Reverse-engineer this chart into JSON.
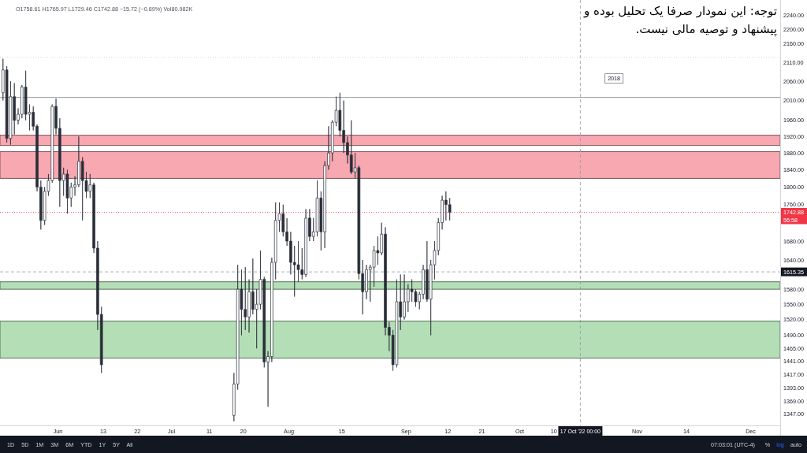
{
  "chart_data": {
    "type": "candlestick",
    "color": "#2a2e39",
    "x": [
      "2022-05-17T12:00",
      "2022-05-18T12:00",
      "2022-05-19T12:00",
      "2022-05-20T12:00",
      "2022-05-21T12:00",
      "2022-05-22T12:00",
      "2022-05-23T12:00",
      "2022-05-24T12:00",
      "2022-05-25T12:00",
      "2022-05-26T12:00",
      "2022-05-27T12:00",
      "2022-05-28T12:00",
      "2022-05-29T12:00",
      "2022-05-30T12:00",
      "2022-05-31T12:00",
      "2022-06-01T12:00",
      "2022-06-02T12:00",
      "2022-06-03T12:00",
      "2022-06-04T12:00",
      "2022-06-05T12:00",
      "2022-06-06T12:00",
      "2022-06-07T12:00",
      "2022-06-08T12:00",
      "2022-06-09T12:00",
      "2022-06-10T12:00",
      "2022-06-11T12:00",
      "2022-06-12T12:00",
      "2022-07-17T12:00",
      "2022-07-18T12:00",
      "2022-07-19T12:00",
      "2022-07-20T12:00",
      "2022-07-21T12:00",
      "2022-07-22T12:00",
      "2022-07-23T12:00",
      "2022-07-24T12:00",
      "2022-07-25T12:00",
      "2022-07-26T12:00",
      "2022-07-27T12:00",
      "2022-07-28T12:00",
      "2022-07-29T12:00",
      "2022-07-30T12:00",
      "2022-07-31T12:00",
      "2022-08-01T12:00",
      "2022-08-02T12:00",
      "2022-08-03T12:00",
      "2022-08-04T12:00",
      "2022-08-05T12:00",
      "2022-08-06T12:00",
      "2022-08-07T12:00",
      "2022-08-08T12:00",
      "2022-08-09T12:00",
      "2022-08-10T12:00",
      "2022-08-11T12:00",
      "2022-08-12T12:00",
      "2022-08-13T12:00",
      "2022-08-14T12:00",
      "2022-08-15T12:00",
      "2022-08-16T12:00",
      "2022-08-17T12:00",
      "2022-08-18T12:00",
      "2022-08-19T12:00",
      "2022-08-20T12:00",
      "2022-08-21T12:00",
      "2022-08-22T12:00",
      "2022-08-23T12:00",
      "2022-08-24T12:00",
      "2022-08-25T12:00",
      "2022-08-26T12:00",
      "2022-08-27T12:00",
      "2022-08-28T12:00",
      "2022-08-29T12:00",
      "2022-08-30T12:00",
      "2022-08-31T12:00",
      "2022-09-01T12:00",
      "2022-09-02T12:00",
      "2022-09-03T12:00",
      "2022-09-04T12:00",
      "2022-09-05T12:00",
      "2022-09-06T12:00",
      "2022-09-07T12:00",
      "2022-09-08T12:00",
      "2022-09-09T12:00",
      "2022-09-10T12:00",
      "2022-09-11T12:00",
      "2022-09-12T12:00"
    ],
    "ohlc": [
      [
        2030,
        2120,
        2010,
        2090
      ],
      [
        2090,
        2100,
        1905,
        1915
      ],
      [
        1915,
        2060,
        1900,
        2020
      ],
      [
        2020,
        2055,
        1925,
        1960
      ],
      [
        1960,
        1990,
        1950,
        1975
      ],
      [
        1975,
        2050,
        1965,
        2045
      ],
      [
        2045,
        2088,
        1960,
        1975
      ],
      [
        1975,
        2000,
        1935,
        1980
      ],
      [
        1980,
        1995,
        1935,
        1945
      ],
      [
        1945,
        1950,
        1790,
        1800
      ],
      [
        1800,
        1815,
        1705,
        1725
      ],
      [
        1725,
        1800,
        1715,
        1790
      ],
      [
        1790,
        1830,
        1780,
        1815
      ],
      [
        1815,
        2000,
        1810,
        1995
      ],
      [
        1995,
        2015,
        1925,
        1940
      ],
      [
        1940,
        1965,
        1755,
        1815
      ],
      [
        1815,
        1845,
        1780,
        1830
      ],
      [
        1830,
        1840,
        1740,
        1775
      ],
      [
        1775,
        1810,
        1755,
        1800
      ],
      [
        1800,
        1825,
        1780,
        1805
      ],
      [
        1805,
        1920,
        1800,
        1860
      ],
      [
        1860,
        1870,
        1725,
        1815
      ],
      [
        1815,
        1835,
        1775,
        1790
      ],
      [
        1790,
        1830,
        1775,
        1805
      ],
      [
        1805,
        1810,
        1655,
        1665
      ],
      [
        1665,
        1680,
        1500,
        1530
      ],
      [
        1530,
        1545,
        1420,
        1435
      ],
      [
        1345,
        1420,
        1335,
        1400
      ],
      [
        1400,
        1630,
        1390,
        1580
      ],
      [
        1580,
        1620,
        1490,
        1540
      ],
      [
        1540,
        1625,
        1500,
        1525
      ],
      [
        1525,
        1600,
        1495,
        1575
      ],
      [
        1575,
        1643,
        1530,
        1540
      ],
      [
        1540,
        1580,
        1465,
        1550
      ],
      [
        1550,
        1660,
        1540,
        1600
      ],
      [
        1600,
        1605,
        1430,
        1440
      ],
      [
        1440,
        1460,
        1360,
        1450
      ],
      [
        1450,
        1645,
        1440,
        1635
      ],
      [
        1635,
        1765,
        1600,
        1725
      ],
      [
        1725,
        1765,
        1700,
        1740
      ],
      [
        1740,
        1760,
        1690,
        1700
      ],
      [
        1700,
        1730,
        1670,
        1680
      ],
      [
        1680,
        1700,
        1610,
        1635
      ],
      [
        1635,
        1670,
        1565,
        1630
      ],
      [
        1630,
        1680,
        1595,
        1620
      ],
      [
        1620,
        1665,
        1600,
        1610
      ],
      [
        1610,
        1750,
        1605,
        1730
      ],
      [
        1730,
        1750,
        1680,
        1690
      ],
      [
        1690,
        1730,
        1680,
        1700
      ],
      [
        1700,
        1815,
        1690,
        1775
      ],
      [
        1775,
        1790,
        1660,
        1700
      ],
      [
        1700,
        1860,
        1665,
        1850
      ],
      [
        1850,
        1945,
        1840,
        1880
      ],
      [
        1880,
        1960,
        1860,
        1955
      ],
      [
        1955,
        2020,
        1945,
        1985
      ],
      [
        1985,
        2030,
        1920,
        1935
      ],
      [
        1935,
        2010,
        1880,
        1905
      ],
      [
        1905,
        1920,
        1855,
        1875
      ],
      [
        1875,
        1960,
        1830,
        1835
      ],
      [
        1835,
        1880,
        1820,
        1845
      ],
      [
        1845,
        1850,
        1600,
        1612
      ],
      [
        1612,
        1640,
        1530,
        1575
      ],
      [
        1575,
        1630,
        1560,
        1620
      ],
      [
        1620,
        1630,
        1555,
        1625
      ],
      [
        1625,
        1670,
        1585,
        1660
      ],
      [
        1660,
        1690,
        1630,
        1655
      ],
      [
        1655,
        1720,
        1650,
        1695
      ],
      [
        1695,
        1710,
        1490,
        1505
      ],
      [
        1505,
        1515,
        1460,
        1490
      ],
      [
        1490,
        1500,
        1424,
        1435
      ],
      [
        1435,
        1600,
        1430,
        1555
      ],
      [
        1555,
        1610,
        1500,
        1525
      ],
      [
        1525,
        1610,
        1520,
        1555
      ],
      [
        1555,
        1590,
        1535,
        1580
      ],
      [
        1580,
        1600,
        1555,
        1575
      ],
      [
        1575,
        1580,
        1545,
        1555
      ],
      [
        1555,
        1575,
        1540,
        1570
      ],
      [
        1570,
        1630,
        1560,
        1620
      ],
      [
        1620,
        1680,
        1555,
        1560
      ],
      [
        1560,
        1640,
        1490,
        1630
      ],
      [
        1630,
        1680,
        1600,
        1660
      ],
      [
        1660,
        1730,
        1650,
        1720
      ],
      [
        1720,
        1780,
        1705,
        1770
      ],
      [
        1770,
        1790,
        1725,
        1760
      ],
      [
        1760,
        1775,
        1725,
        1742.88
      ]
    ],
    "xlim": [
      "2022-05-16T17:00",
      "2022-12-08T19:00"
    ],
    "ylim": [
      1328,
      2285
    ],
    "log": true,
    "xticks": [
      {
        "value": "2022-06-01",
        "label": "Jun"
      },
      {
        "value": "2022-06-13",
        "label": "13"
      },
      {
        "value": "2022-06-22",
        "label": "22"
      },
      {
        "value": "2022-07-01",
        "label": "Jul"
      },
      {
        "value": "2022-07-11",
        "label": "11"
      },
      {
        "value": "2022-07-20",
        "label": "20"
      },
      {
        "value": "2022-08-01",
        "label": "Aug"
      },
      {
        "value": "2022-08-15",
        "label": "15"
      },
      {
        "value": "2022-09-01",
        "label": "Sep"
      },
      {
        "value": "2022-09-12",
        "label": "12"
      },
      {
        "value": "2022-09-21",
        "label": "21"
      },
      {
        "value": "2022-10-01",
        "label": "Oct"
      },
      {
        "value": "2022-10-10",
        "label": "10"
      },
      {
        "value": "2022-11-01",
        "label": "Nov"
      },
      {
        "value": "2022-11-14",
        "label": "14"
      },
      {
        "value": "2022-12-01",
        "label": "Dec"
      }
    ],
    "yticks": [
      {
        "value": 1347,
        "label": "1347.00"
      },
      {
        "value": 1369,
        "label": "1369.00"
      },
      {
        "value": 1393,
        "label": "1393.00"
      },
      {
        "value": 1417,
        "label": "1417.00"
      },
      {
        "value": 1441,
        "label": "1441.00"
      },
      {
        "value": 1465,
        "label": "1465.00"
      },
      {
        "value": 1490,
        "label": "1490.00"
      },
      {
        "value": 1520,
        "label": "1520.00"
      },
      {
        "value": 1550,
        "label": "1550.00"
      },
      {
        "value": 1580,
        "label": "1580.00"
      },
      {
        "value": 1640,
        "label": "1640.00"
      },
      {
        "value": 1680,
        "label": "1680.00"
      },
      {
        "value": 1760,
        "label": "1760.00"
      },
      {
        "value": 1800,
        "label": "1800.00"
      },
      {
        "value": 1840,
        "label": "1840.00"
      },
      {
        "value": 1880,
        "label": "1880.00"
      },
      {
        "value": 1920,
        "label": "1920.00"
      },
      {
        "value": 1960,
        "label": "1960.00"
      },
      {
        "value": 2010,
        "label": "2010.00"
      },
      {
        "value": 2060,
        "label": "2060.00"
      },
      {
        "value": 2110,
        "label": "2110.00"
      },
      {
        "value": 2160,
        "label": "2160.00"
      },
      {
        "value": 2200,
        "label": "2200.00"
      },
      {
        "value": 2240,
        "label": "2240.00"
      }
    ],
    "bands": [
      {
        "axis": "y",
        "from": 1898,
        "to": 1923,
        "color": "#f7a8b0"
      },
      {
        "axis": "y",
        "from": 1820,
        "to": 1883,
        "color": "#f7a8b0"
      },
      {
        "axis": "y",
        "from": 1580,
        "to": 1595,
        "color": "#b4dfb6"
      },
      {
        "axis": "y",
        "from": 1447,
        "to": 1517,
        "color": "#b4dfb6"
      }
    ],
    "ref_lines": [
      {
        "axis": "y",
        "value": 2124,
        "color": "#c8cbd2",
        "line_style": "dotted"
      },
      {
        "axis": "y",
        "value": 2018,
        "label": "2018",
        "color": "#787b86",
        "line_style": "solid"
      },
      {
        "axis": "y",
        "value": 1742.88,
        "label": "1742.88",
        "color": "#f23645",
        "line_style": "dotted"
      },
      {
        "axis": "y",
        "value": 1615.35,
        "label": "1615.35",
        "color": "#9598a1",
        "line_style": "dashed"
      },
      {
        "axis": "x",
        "value": "2022-10-17",
        "label": "17 Oct '22 00:00",
        "color": "#9598a1",
        "line_style": "dashed"
      }
    ],
    "annotations": [
      "O1758.61 H1765.97 L1729.46 C1742.88 −15.72 (−0.89%) Vol80.982K",
      "توجه: این نمودار صرفا یک تحلیل بوده و پیشنهاد و توصیه مالی نیست.",
      "56:58",
      "1D 5D 1M 3M 6M YTD 1Y 5Y All",
      "07:03:01 (UTC-4)",
      "%",
      "log",
      "auto"
    ]
  }
}
